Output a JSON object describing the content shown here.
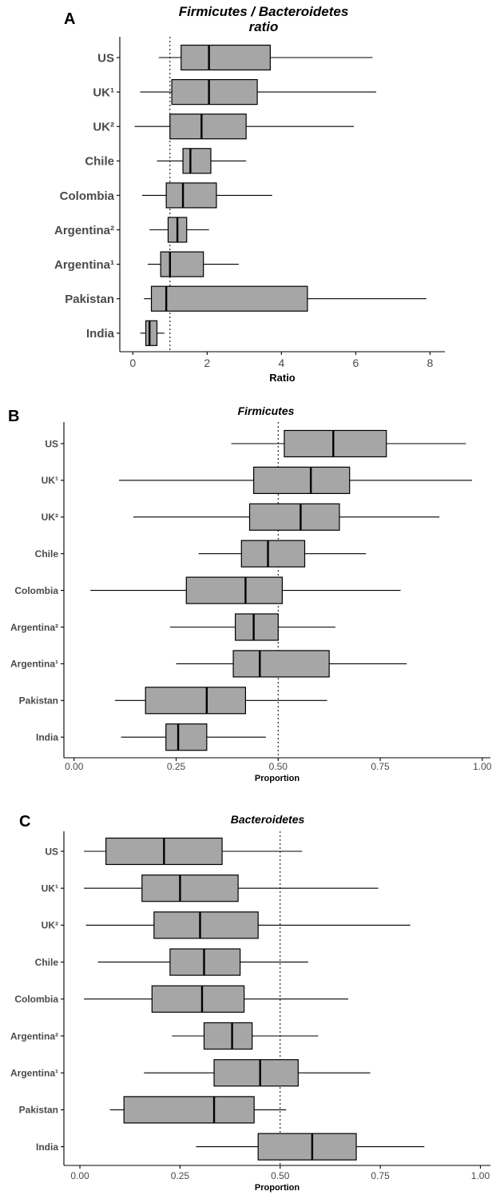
{
  "chart_data": [
    {
      "type": "boxplot",
      "panel": "A",
      "title": "Firmicutes / Bacteroidetes",
      "title_line2": "ratio",
      "xlabel": "Ratio",
      "xlim": [
        -0.35,
        8.4
      ],
      "xticks": [
        0,
        2,
        4,
        6,
        8
      ],
      "tick_labels": [
        "0",
        "2",
        "4",
        "6",
        "8"
      ],
      "reference_line": 1,
      "categories": [
        "US",
        "UK¹",
        "UK²",
        "Chile",
        "Colombia",
        "Argentina²",
        "Argentina¹",
        "Pakistan",
        "India"
      ],
      "boxes": [
        {
          "whisker_low": 0.7,
          "q1": 1.3,
          "median": 2.05,
          "q3": 3.7,
          "whisker_high": 6.45
        },
        {
          "whisker_low": 0.2,
          "q1": 1.05,
          "median": 2.05,
          "q3": 3.35,
          "whisker_high": 6.55
        },
        {
          "whisker_low": 0.05,
          "q1": 1.0,
          "median": 1.85,
          "q3": 3.05,
          "whisker_high": 5.95
        },
        {
          "whisker_low": 0.65,
          "q1": 1.35,
          "median": 1.55,
          "q3": 2.1,
          "whisker_high": 3.05
        },
        {
          "whisker_low": 0.25,
          "q1": 0.9,
          "median": 1.35,
          "q3": 2.25,
          "whisker_high": 3.75
        },
        {
          "whisker_low": 0.45,
          "q1": 0.95,
          "median": 1.2,
          "q3": 1.45,
          "whisker_high": 2.05
        },
        {
          "whisker_low": 0.4,
          "q1": 0.75,
          "median": 1.0,
          "q3": 1.9,
          "whisker_high": 2.85
        },
        {
          "whisker_low": 0.3,
          "q1": 0.5,
          "median": 0.9,
          "q3": 4.7,
          "whisker_high": 7.9
        },
        {
          "whisker_low": 0.2,
          "q1": 0.35,
          "median": 0.45,
          "q3": 0.65,
          "whisker_high": 0.85
        }
      ]
    },
    {
      "type": "boxplot",
      "panel": "B",
      "title": "Firmicutes",
      "xlabel": "Proportion",
      "xlim": [
        -0.025,
        1.02
      ],
      "xticks": [
        0,
        0.25,
        0.5,
        0.75,
        1.0
      ],
      "tick_labels": [
        "0.00",
        "0.25",
        "0.50",
        "0.75",
        "1.00"
      ],
      "reference_line": 0.5,
      "categories": [
        "US",
        "UK¹",
        "UK²",
        "Chile",
        "Colombia",
        "Argentina²",
        "Argentina¹",
        "Pakistan",
        "India"
      ],
      "boxes": [
        {
          "whisker_low": 0.385,
          "q1": 0.515,
          "median": 0.635,
          "q3": 0.765,
          "whisker_high": 0.96
        },
        {
          "whisker_low": 0.11,
          "q1": 0.44,
          "median": 0.58,
          "q3": 0.675,
          "whisker_high": 0.975
        },
        {
          "whisker_low": 0.145,
          "q1": 0.43,
          "median": 0.555,
          "q3": 0.65,
          "whisker_high": 0.895
        },
        {
          "whisker_low": 0.305,
          "q1": 0.41,
          "median": 0.475,
          "q3": 0.565,
          "whisker_high": 0.715
        },
        {
          "whisker_low": 0.04,
          "q1": 0.275,
          "median": 0.42,
          "q3": 0.51,
          "whisker_high": 0.8
        },
        {
          "whisker_low": 0.235,
          "q1": 0.395,
          "median": 0.44,
          "q3": 0.5,
          "whisker_high": 0.64
        },
        {
          "whisker_low": 0.25,
          "q1": 0.39,
          "median": 0.455,
          "q3": 0.625,
          "whisker_high": 0.815
        },
        {
          "whisker_low": 0.1,
          "q1": 0.175,
          "median": 0.325,
          "q3": 0.42,
          "whisker_high": 0.62
        },
        {
          "whisker_low": 0.115,
          "q1": 0.225,
          "median": 0.255,
          "q3": 0.325,
          "whisker_high": 0.47
        }
      ]
    },
    {
      "type": "boxplot",
      "panel": "C",
      "title": "Bacteroidetes",
      "xlabel": "Proportion",
      "xlim": [
        -0.04,
        1.025
      ],
      "xticks": [
        0,
        0.25,
        0.5,
        0.75,
        1.0
      ],
      "tick_labels": [
        "0.00",
        "0.25",
        "0.50",
        "0.75",
        "1.00"
      ],
      "reference_line": 0.5,
      "categories": [
        "US",
        "UK¹",
        "UK²",
        "Chile",
        "Colombia",
        "Argentina²",
        "Argentina¹",
        "Pakistan",
        "India"
      ],
      "boxes": [
        {
          "whisker_low": 0.01,
          "q1": 0.065,
          "median": 0.21,
          "q3": 0.355,
          "whisker_high": 0.555
        },
        {
          "whisker_low": 0.01,
          "q1": 0.155,
          "median": 0.25,
          "q3": 0.395,
          "whisker_high": 0.745
        },
        {
          "whisker_low": 0.015,
          "q1": 0.185,
          "median": 0.3,
          "q3": 0.445,
          "whisker_high": 0.825
        },
        {
          "whisker_low": 0.045,
          "q1": 0.225,
          "median": 0.31,
          "q3": 0.4,
          "whisker_high": 0.57
        },
        {
          "whisker_low": 0.01,
          "q1": 0.18,
          "median": 0.305,
          "q3": 0.41,
          "whisker_high": 0.67
        },
        {
          "whisker_low": 0.23,
          "q1": 0.31,
          "median": 0.38,
          "q3": 0.43,
          "whisker_high": 0.595
        },
        {
          "whisker_low": 0.16,
          "q1": 0.335,
          "median": 0.45,
          "q3": 0.545,
          "whisker_high": 0.725
        },
        {
          "whisker_low": 0.075,
          "q1": 0.11,
          "median": 0.335,
          "q3": 0.435,
          "whisker_high": 0.515
        },
        {
          "whisker_low": 0.29,
          "q1": 0.445,
          "median": 0.58,
          "q3": 0.69,
          "whisker_high": 0.86
        }
      ]
    }
  ]
}
